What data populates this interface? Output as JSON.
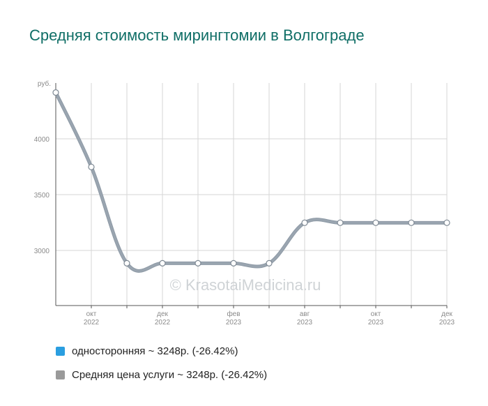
{
  "title": "Средняя стоимость мирингтомии в Волгограде",
  "watermark": "© KrasotaiMedicina.ru",
  "colors": {
    "title": "#0f6e66",
    "line": "#8e9aa6",
    "grid": "#d6d6d6",
    "axis": "#555555"
  },
  "legend": [
    {
      "label": "односторонняя ~ 3248р. (-26.42%)",
      "color": "#2a9ee0"
    },
    {
      "label": "Средняя цена услуги ~ 3248р. (-26.42%)",
      "color": "#9a9a9a"
    }
  ],
  "chart_data": {
    "type": "line",
    "ylabel": "руб.",
    "y_ticks": [
      3000,
      3500,
      4000
    ],
    "x_tick_labels": [
      {
        "month": "окт",
        "year": "2022",
        "index": 1
      },
      {
        "month": "дек",
        "year": "2022",
        "index": 3
      },
      {
        "month": "фев",
        "year": "2023",
        "index": 5
      },
      {
        "month": "авг",
        "year": "2023",
        "index": 7
      },
      {
        "month": "окт",
        "year": "2023",
        "index": 9
      },
      {
        "month": "дек",
        "year": "2023",
        "index": 11
      }
    ],
    "series": [
      {
        "name": "односторонняя",
        "values": [
          4415,
          3748,
          2885,
          2885,
          2885,
          2885,
          2885,
          3248,
          3248,
          3248,
          3248,
          3248
        ]
      },
      {
        "name": "Средняя цена услуги",
        "values": [
          4415,
          3748,
          2885,
          2885,
          2885,
          2885,
          2885,
          3248,
          3248,
          3248,
          3248,
          3248
        ]
      }
    ]
  }
}
